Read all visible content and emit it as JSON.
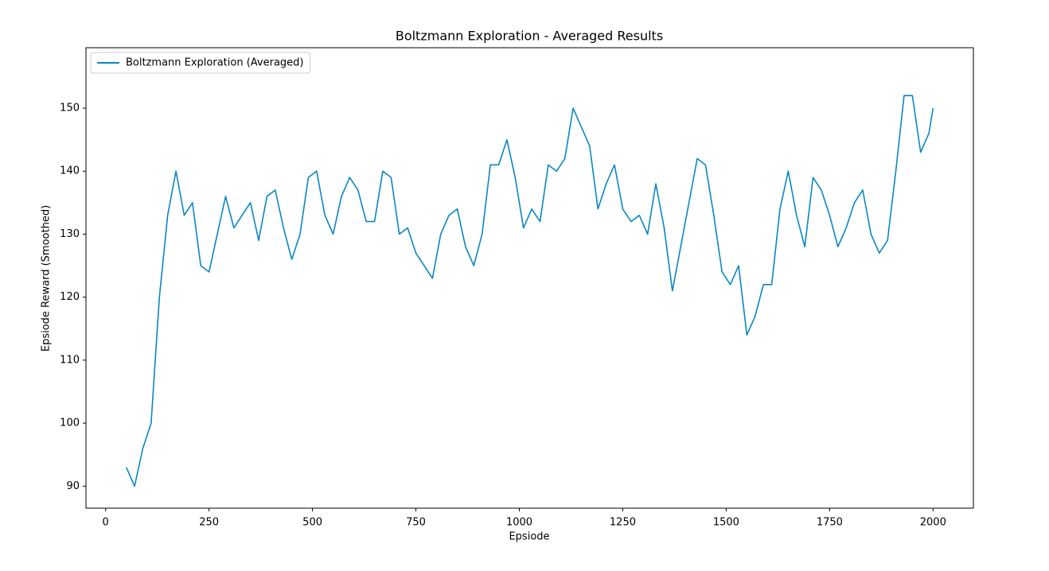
{
  "chart_data": {
    "type": "line",
    "title": "Boltzmann Exploration - Averaged Results",
    "x_label": "Epsiode",
    "y_label": "Epsiode Reward (Smoothed)",
    "x": [
      50,
      70,
      90,
      110,
      120,
      130,
      150,
      170,
      190,
      210,
      230,
      250,
      270,
      290,
      310,
      330,
      350,
      370,
      390,
      410,
      430,
      450,
      470,
      490,
      510,
      530,
      550,
      570,
      590,
      610,
      630,
      650,
      670,
      690,
      710,
      730,
      750,
      770,
      790,
      810,
      830,
      850,
      870,
      890,
      910,
      930,
      950,
      970,
      990,
      1010,
      1030,
      1050,
      1070,
      1090,
      1110,
      1130,
      1150,
      1170,
      1190,
      1210,
      1230,
      1250,
      1270,
      1290,
      1310,
      1330,
      1350,
      1370,
      1390,
      1410,
      1430,
      1450,
      1470,
      1490,
      1510,
      1530,
      1550,
      1570,
      1590,
      1610,
      1630,
      1650,
      1670,
      1690,
      1710,
      1730,
      1750,
      1770,
      1790,
      1810,
      1830,
      1850,
      1870,
      1890,
      1910,
      1930,
      1950,
      1970,
      1990,
      2000
    ],
    "series": [
      {
        "name": "Boltzmann Exploration (Averaged)",
        "color": "#0a87c2",
        "values": [
          93,
          90,
          96,
          100,
          110,
          120,
          133,
          140,
          133,
          135,
          125,
          124,
          130,
          136,
          131,
          133,
          135,
          129,
          136,
          137,
          131,
          126,
          130,
          139,
          140,
          133,
          130,
          136,
          139,
          137,
          132,
          132,
          140,
          139,
          130,
          131,
          127,
          125,
          123,
          130,
          133,
          134,
          128,
          125,
          130,
          141,
          141,
          145,
          139,
          131,
          134,
          132,
          141,
          140,
          142,
          150,
          147,
          144,
          134,
          138,
          141,
          134,
          132,
          133,
          130,
          138,
          131,
          121,
          128,
          135,
          142,
          141,
          133,
          124,
          122,
          125,
          114,
          117,
          122,
          122,
          134,
          140,
          133,
          128,
          139,
          137,
          133,
          128,
          131,
          135,
          137,
          130,
          127,
          129,
          140,
          152,
          152,
          143,
          146,
          150
        ]
      }
    ],
    "xlim": [
      -47.5,
      2097.5
    ],
    "ylim": [
      86.5,
      159.6
    ],
    "xticks": [
      0,
      250,
      500,
      750,
      1000,
      1250,
      1500,
      1750,
      2000
    ],
    "yticks": [
      90,
      100,
      110,
      120,
      130,
      140,
      150
    ],
    "legend": "upper left",
    "grid": false
  }
}
